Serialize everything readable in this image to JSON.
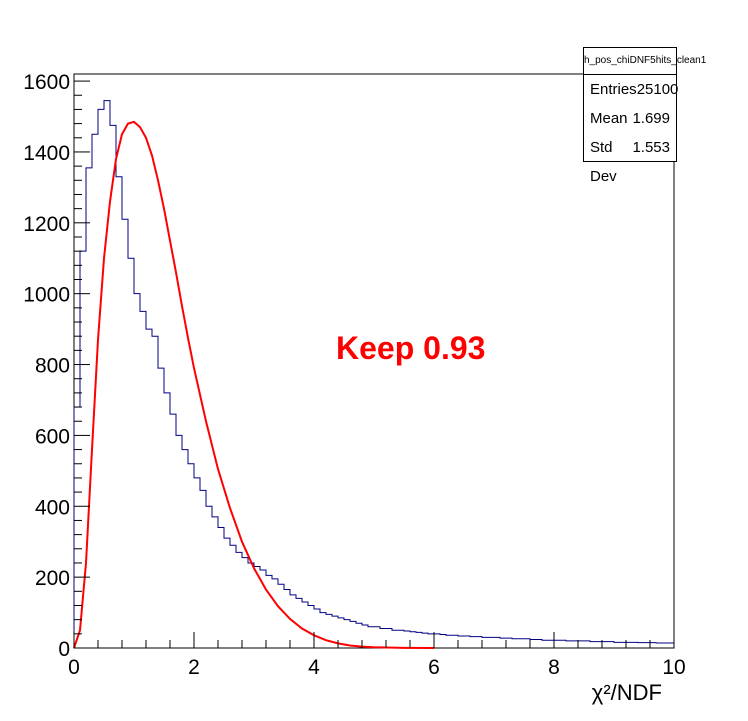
{
  "chart_data": {
    "type": "histogram",
    "xlabel": "χ²/NDF",
    "ylabel": "",
    "xlim": [
      0,
      10
    ],
    "ylim": [
      0,
      1620
    ],
    "x_ticks": [
      0,
      2,
      4,
      6,
      8,
      10
    ],
    "y_ticks": [
      0,
      200,
      400,
      600,
      800,
      1000,
      1200,
      1400,
      1600
    ],
    "bin_width": 0.1,
    "histogram": {
      "color": "#000080",
      "values": [
        680,
        1120,
        1355,
        1450,
        1520,
        1545,
        1475,
        1330,
        1210,
        1100,
        1000,
        950,
        900,
        880,
        790,
        720,
        660,
        600,
        560,
        520,
        480,
        445,
        400,
        370,
        340,
        310,
        290,
        270,
        255,
        240,
        230,
        220,
        205,
        195,
        180,
        165,
        150,
        140,
        130,
        120,
        110,
        100,
        95,
        90,
        85,
        80,
        75,
        70,
        65,
        60,
        60,
        55,
        55,
        50,
        50,
        48,
        46,
        44,
        42,
        40,
        40,
        38,
        36,
        36,
        34,
        34,
        32,
        32,
        30,
        30,
        30,
        28,
        28,
        26,
        26,
        26,
        24,
        24,
        22,
        22,
        22,
        22,
        20,
        20,
        20,
        20,
        18,
        18,
        18,
        18,
        16,
        16,
        16,
        16,
        15,
        15,
        15,
        14,
        14,
        14
      ]
    },
    "fit": {
      "color": "#ff0000",
      "points": [
        [
          0.0,
          0
        ],
        [
          0.1,
          50
        ],
        [
          0.2,
          240
        ],
        [
          0.3,
          560
        ],
        [
          0.4,
          870
        ],
        [
          0.5,
          1100
        ],
        [
          0.6,
          1260
        ],
        [
          0.7,
          1380
        ],
        [
          0.8,
          1450
        ],
        [
          0.9,
          1480
        ],
        [
          1.0,
          1485
        ],
        [
          1.1,
          1470
        ],
        [
          1.2,
          1440
        ],
        [
          1.3,
          1390
        ],
        [
          1.4,
          1320
        ],
        [
          1.5,
          1240
        ],
        [
          1.6,
          1150
        ],
        [
          1.7,
          1060
        ],
        [
          1.8,
          965
        ],
        [
          1.9,
          875
        ],
        [
          2.0,
          790
        ],
        [
          2.2,
          640
        ],
        [
          2.4,
          505
        ],
        [
          2.6,
          395
        ],
        [
          2.8,
          300
        ],
        [
          3.0,
          225
        ],
        [
          3.2,
          165
        ],
        [
          3.4,
          118
        ],
        [
          3.6,
          82
        ],
        [
          3.8,
          55
        ],
        [
          4.0,
          36
        ],
        [
          4.2,
          22
        ],
        [
          4.4,
          13
        ],
        [
          4.6,
          7
        ],
        [
          4.8,
          4
        ],
        [
          5.0,
          2
        ],
        [
          5.5,
          0.5
        ],
        [
          6.0,
          0
        ]
      ]
    },
    "annotation": "Keep 0.93",
    "stats": {
      "title": "h_pos_chiDNF5hits_clean1",
      "rows": [
        {
          "label": "Entries",
          "value": "25100"
        },
        {
          "label": "Mean",
          "value": "1.699"
        },
        {
          "label": "Std Dev",
          "value": "1.553"
        }
      ]
    }
  }
}
